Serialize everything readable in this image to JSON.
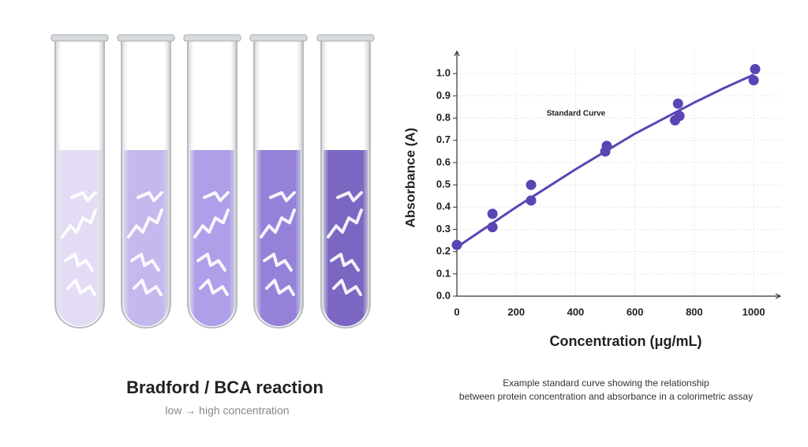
{
  "chart_data": {
    "type": "scatter",
    "annotation": "Standard Curve",
    "x_label": "Concentration (μg/mL)",
    "y_label": "Absorbance (A)",
    "series": [
      {
        "color": "#5b45b5",
        "x": [
          0,
          120,
          120,
          250,
          250,
          500,
          505,
          735,
          745,
          750,
          1000,
          1005
        ],
        "values": [
          0.23,
          0.37,
          0.31,
          0.5,
          0.43,
          0.65,
          0.675,
          0.79,
          0.865,
          0.81,
          0.97,
          1.02
        ]
      }
    ],
    "fit": {
      "color": "#5b45b5",
      "x": [
        0,
        100,
        200,
        300,
        400,
        500,
        600,
        700,
        800,
        900,
        1000
      ],
      "values": [
        0.22,
        0.31,
        0.4,
        0.485,
        0.57,
        0.65,
        0.73,
        0.8,
        0.87,
        0.935,
        0.995
      ]
    },
    "xlim": [
      0,
      1090
    ],
    "ylim": [
      0,
      1.1
    ],
    "xticks": [
      0,
      200,
      400,
      600,
      800,
      1000
    ],
    "yticks": [
      {
        "value": 0,
        "label": "0.0"
      },
      0.1,
      0.2,
      0.3,
      0.4,
      0.5,
      0.6,
      0.7,
      0.8,
      0.9,
      {
        "value": 1,
        "label": "1.0"
      }
    ],
    "grid": true
  },
  "figure": {
    "title": "Bradford / BCA reaction",
    "subtitle": "low → high concentration",
    "caption": [
      "Example standard curve showing the relationship",
      "between protein concentration and absorbance in a colorimetric assay"
    ]
  }
}
